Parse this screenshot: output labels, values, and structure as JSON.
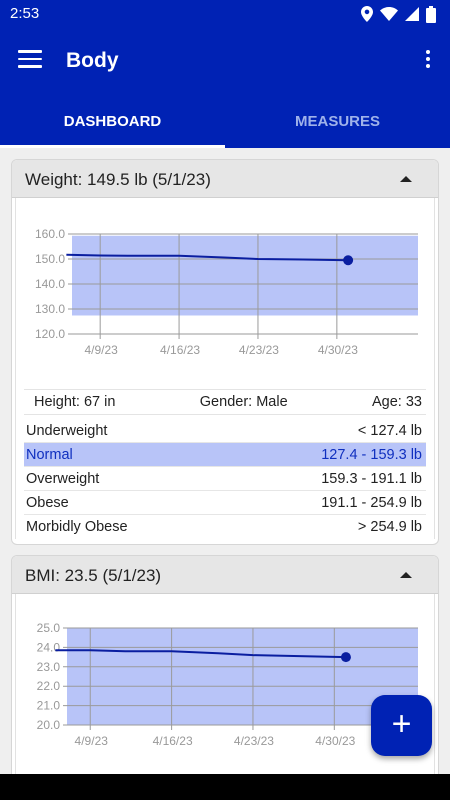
{
  "status": {
    "time": "2:53",
    "icons": [
      "location-icon",
      "wifi-icon",
      "signal-icon",
      "battery-icon"
    ]
  },
  "appbar": {
    "title": "Body"
  },
  "tabs": [
    {
      "label": "DASHBOARD",
      "active": true
    },
    {
      "label": "MEASURES",
      "active": false
    }
  ],
  "weight_card": {
    "title": "Weight: 149.5 lb (5/1/23)",
    "info": {
      "height": "Height: 67 in",
      "gender": "Gender: Male",
      "age": "Age: 33"
    },
    "ranges": [
      {
        "label": "Underweight",
        "value": "< 127.4 lb"
      },
      {
        "label": "Normal",
        "value": "127.4 - 159.3 lb",
        "highlighted": true
      },
      {
        "label": "Overweight",
        "value": "159.3 - 191.1 lb"
      },
      {
        "label": "Obese",
        "value": "191.1 - 254.9 lb"
      },
      {
        "label": "Morbidly Obese",
        "value": "> 254.9 lb"
      }
    ]
  },
  "bmi_card": {
    "title": "BMI: 23.5 (5/1/23)"
  },
  "chart_data": [
    {
      "type": "line",
      "title": "",
      "xlabel": "",
      "ylabel": "",
      "x": [
        "4/6/23",
        "4/9/23",
        "4/12/23",
        "4/16/23",
        "4/20/23",
        "4/23/23",
        "4/27/23",
        "5/1/23"
      ],
      "y": [
        151.7,
        151.4,
        151.3,
        151.3,
        150.6,
        150.0,
        149.8,
        149.5
      ],
      "x_ticks": [
        "4/9/23",
        "4/16/23",
        "4/23/23",
        "4/30/23"
      ],
      "y_ticks": [
        "120.0",
        "130.0",
        "140.0",
        "150.0",
        "160.0"
      ],
      "ylim": [
        120,
        160
      ],
      "normal_band": [
        127.4,
        159.3
      ],
      "colors": {
        "line": "#0a1ea0",
        "band": "#b8c4f8"
      }
    },
    {
      "type": "line",
      "title": "",
      "xlabel": "",
      "ylabel": "",
      "x": [
        "4/6/23",
        "4/9/23",
        "4/12/23",
        "4/16/23",
        "4/20/23",
        "4/23/23",
        "4/27/23",
        "5/1/23"
      ],
      "y": [
        23.85,
        23.85,
        23.8,
        23.8,
        23.7,
        23.6,
        23.55,
        23.5
      ],
      "x_ticks": [
        "4/9/23",
        "4/16/23",
        "4/23/23",
        "4/30/23"
      ],
      "y_ticks": [
        "20.0",
        "21.0",
        "22.0",
        "23.0",
        "24.0",
        "25.0"
      ],
      "ylim": [
        20,
        25
      ],
      "normal_band": [
        20,
        25
      ],
      "colors": {
        "line": "#0a1ea0",
        "band": "#b8c4f8"
      }
    }
  ]
}
